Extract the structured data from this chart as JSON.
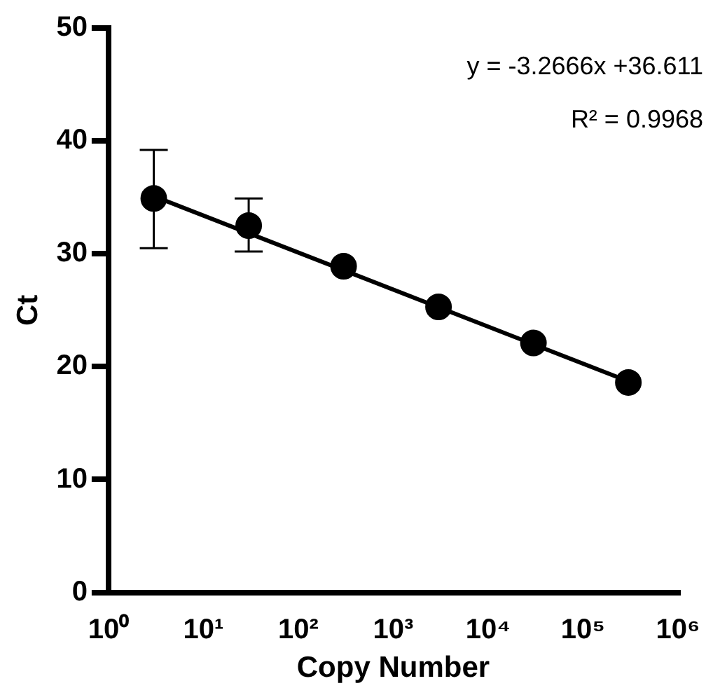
{
  "chart_data": {
    "type": "scatter",
    "xlabel": "Copy Number",
    "ylabel": "Ct",
    "log": "x",
    "xlim": [
      1,
      1000000
    ],
    "xticks": [
      {
        "value": 1,
        "label": "10⁰"
      },
      {
        "value": 10,
        "label": "10¹"
      },
      {
        "value": 100,
        "label": "10²"
      },
      {
        "value": 1000,
        "label": "10³"
      },
      {
        "value": 10000,
        "label": "10⁴"
      },
      {
        "value": 100000,
        "label": "10⁵"
      },
      {
        "value": 1000000,
        "label": "10⁶"
      }
    ],
    "ylim": [
      0,
      50
    ],
    "yticks": [
      0,
      10,
      20,
      30,
      40,
      50
    ],
    "grid": false,
    "legend": false,
    "marker": "circle",
    "annotations": [
      "y = -3.2666x +36.611",
      "R² = 0.9968"
    ],
    "series": [
      {
        "type": "scatter",
        "color": "#000000",
        "x": [
          3,
          30,
          300,
          3000,
          30000,
          300000
        ],
        "values": [
          34.9,
          32.5,
          28.9,
          25.3,
          22.1,
          18.6
        ],
        "errors": [
          [
            30.5,
            39.2
          ],
          [
            30.2,
            34.9
          ],
          null,
          null,
          null,
          null
        ]
      },
      {
        "type": "line",
        "color": "#000000",
        "marker": "none",
        "x": [
          3,
          300000
        ],
        "values": [
          35.1,
          18.7
        ]
      }
    ]
  }
}
